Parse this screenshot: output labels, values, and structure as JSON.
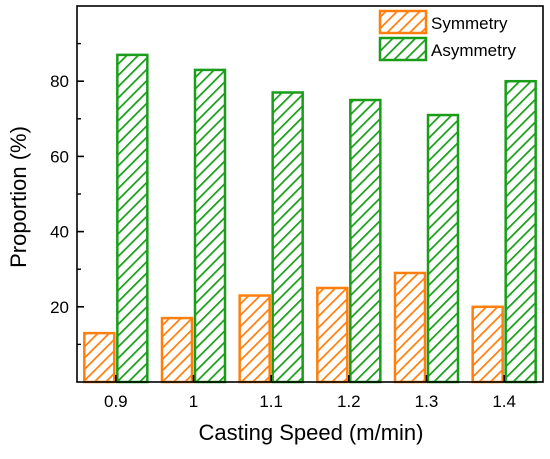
{
  "chart_data": {
    "type": "bar",
    "title": "",
    "xlabel": "Casting Speed (m/min)",
    "ylabel": "Proportion (%)",
    "categories": [
      "0.9",
      "1",
      "1.1",
      "1.2",
      "1.3",
      "1.4"
    ],
    "series": [
      {
        "name": "Symmetry",
        "values": [
          13,
          17,
          23,
          25,
          29,
          20
        ],
        "color": "#ff7f0e",
        "pattern": "diagonal-hatch"
      },
      {
        "name": "Asymmetry",
        "values": [
          87,
          83,
          77,
          75,
          71,
          80
        ],
        "color": "#1a9e1a",
        "pattern": "diagonal-hatch"
      }
    ],
    "ylim": [
      0,
      100
    ],
    "yticks": [
      20,
      40,
      60,
      80
    ],
    "grid": false,
    "legend_position": "top-right"
  }
}
